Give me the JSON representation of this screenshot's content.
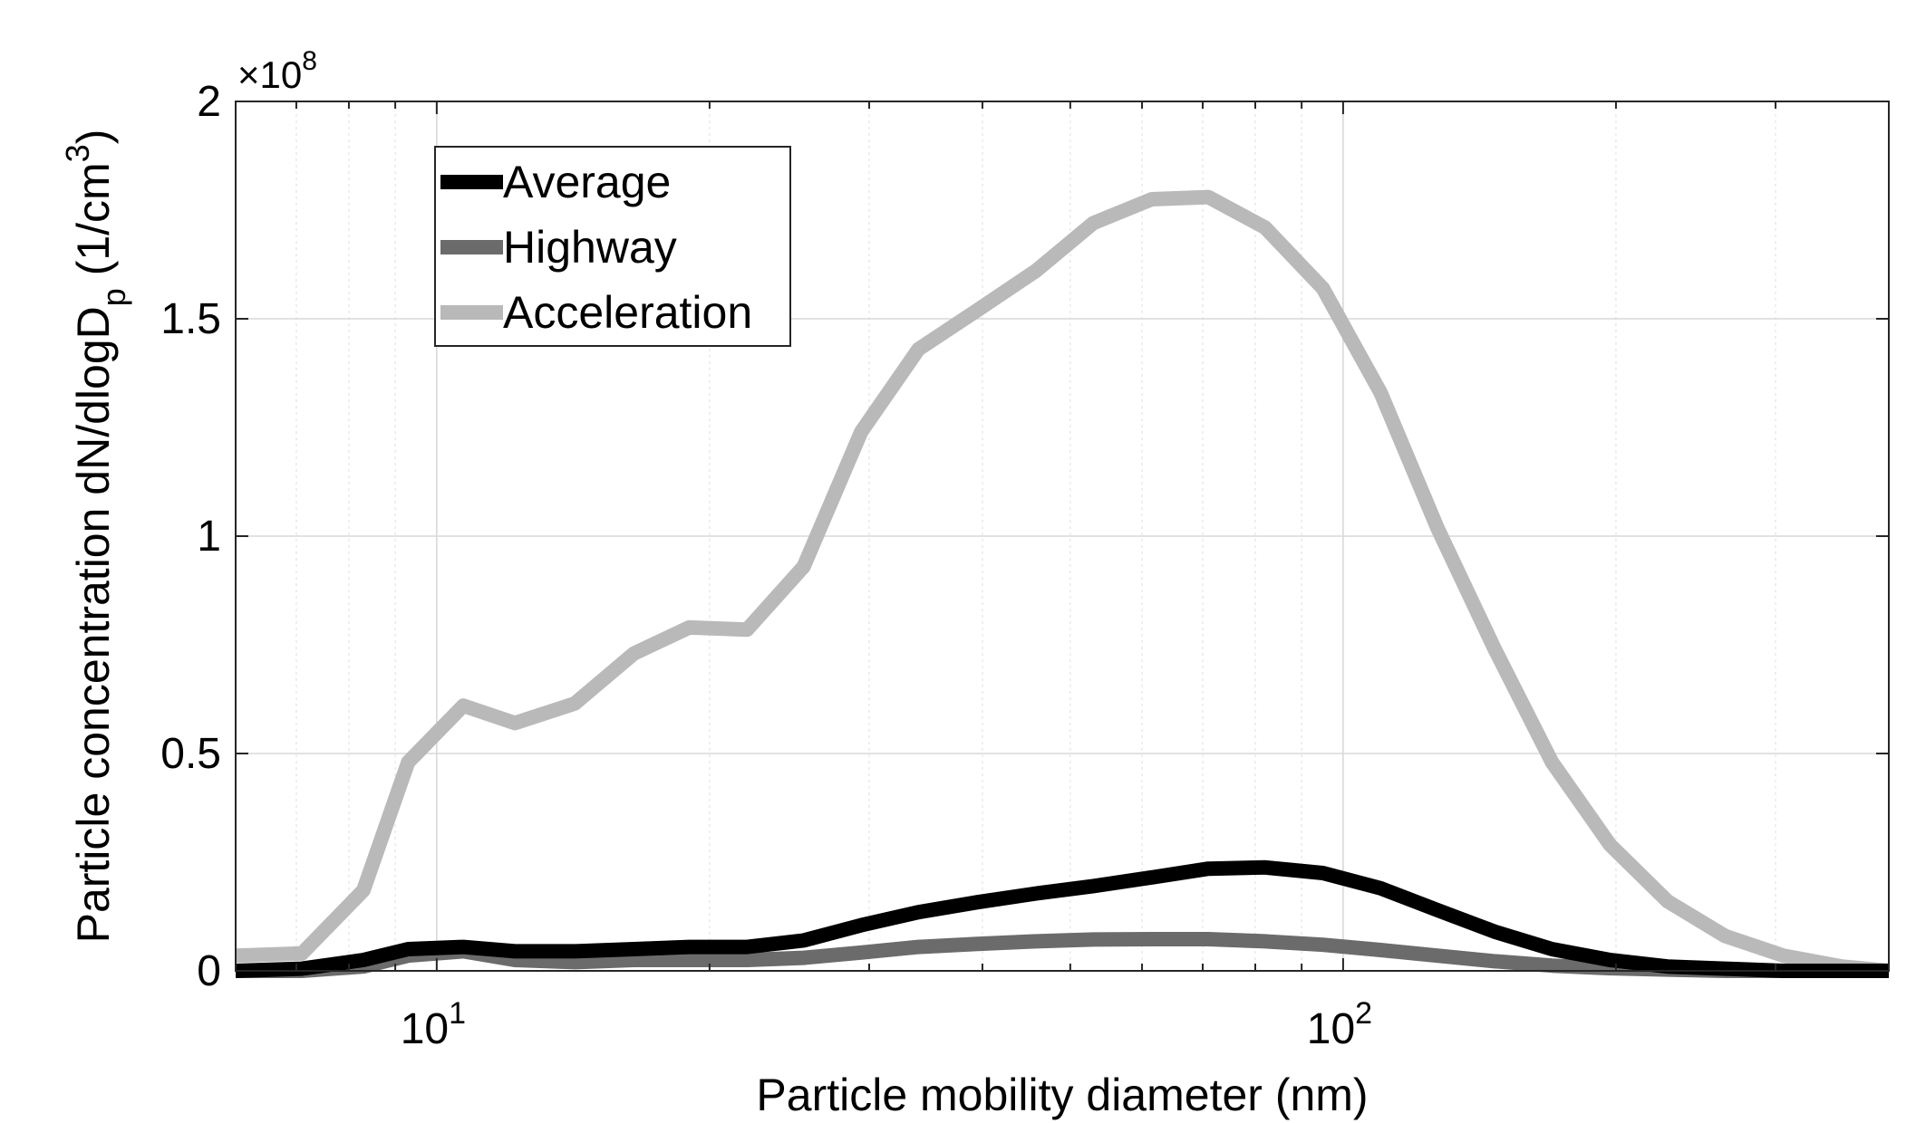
{
  "chart_data": {
    "type": "line",
    "xlabel": "Particle mobility diameter (nm)",
    "ylabel_main": "Particle concentration dN/dlogD",
    "ylabel_sub": "p",
    "ylabel_unit_open": " (1/cm",
    "ylabel_unit_sup": "3",
    "ylabel_unit_close": ")",
    "y_multiplier": "×10",
    "y_multiplier_exp": "8",
    "xscale": "log",
    "xlim": [
      6.0,
      400.0
    ],
    "ylim": [
      0,
      2
    ],
    "grid": true,
    "legend_position": "top-left",
    "x_ticks": [
      {
        "value": 10,
        "base": "10",
        "exp": "1"
      },
      {
        "value": 100,
        "base": "10",
        "exp": "2"
      }
    ],
    "y_ticks": [
      {
        "value": 0,
        "label": "0"
      },
      {
        "value": 0.5,
        "label": "0.5"
      },
      {
        "value": 1,
        "label": "1"
      },
      {
        "value": 1.5,
        "label": "1.5"
      },
      {
        "value": 2,
        "label": "2"
      }
    ],
    "series": [
      {
        "name": "Average",
        "color": "#000000",
        "points": [
          [
            6.0,
            0.0
          ],
          [
            7.1,
            0.005
          ],
          [
            8.3,
            0.025
          ],
          [
            9.3,
            0.05
          ],
          [
            10.7,
            0.055
          ],
          [
            12.2,
            0.045
          ],
          [
            14.2,
            0.045
          ],
          [
            16.5,
            0.05
          ],
          [
            19.0,
            0.055
          ],
          [
            22.0,
            0.055
          ],
          [
            25.4,
            0.07
          ],
          [
            29.4,
            0.105
          ],
          [
            34.0,
            0.135
          ],
          [
            39.5,
            0.158
          ],
          [
            45.8,
            0.178
          ],
          [
            53.0,
            0.195
          ],
          [
            61.5,
            0.215
          ],
          [
            71.0,
            0.235
          ],
          [
            82.0,
            0.238
          ],
          [
            95.0,
            0.225
          ],
          [
            110.0,
            0.19
          ],
          [
            127.0,
            0.14
          ],
          [
            147.0,
            0.09
          ],
          [
            170.0,
            0.05
          ],
          [
            197.0,
            0.025
          ],
          [
            228.0,
            0.01
          ],
          [
            264.0,
            0.005
          ],
          [
            306.0,
            0.0
          ],
          [
            355.0,
            0.0
          ],
          [
            400.0,
            0.0
          ]
        ]
      },
      {
        "name": "Highway",
        "color": "#6b6b6b",
        "points": [
          [
            6.0,
            0.0
          ],
          [
            7.1,
            0.0
          ],
          [
            8.3,
            0.01
          ],
          [
            9.3,
            0.035
          ],
          [
            10.7,
            0.045
          ],
          [
            12.2,
            0.025
          ],
          [
            14.2,
            0.02
          ],
          [
            16.5,
            0.025
          ],
          [
            19.0,
            0.025
          ],
          [
            22.0,
            0.025
          ],
          [
            25.4,
            0.03
          ],
          [
            29.4,
            0.042
          ],
          [
            34.0,
            0.055
          ],
          [
            39.5,
            0.062
          ],
          [
            45.8,
            0.068
          ],
          [
            53.0,
            0.072
          ],
          [
            61.5,
            0.073
          ],
          [
            71.0,
            0.073
          ],
          [
            82.0,
            0.068
          ],
          [
            95.0,
            0.06
          ],
          [
            110.0,
            0.048
          ],
          [
            127.0,
            0.035
          ],
          [
            147.0,
            0.022
          ],
          [
            170.0,
            0.012
          ],
          [
            197.0,
            0.006
          ],
          [
            228.0,
            0.003
          ],
          [
            264.0,
            0.0
          ],
          [
            306.0,
            0.0
          ],
          [
            355.0,
            0.0
          ],
          [
            400.0,
            0.0
          ]
        ]
      },
      {
        "name": "Acceleration",
        "color": "#b9b9b9",
        "points": [
          [
            6.0,
            0.035
          ],
          [
            7.1,
            0.04
          ],
          [
            8.3,
            0.185
          ],
          [
            9.3,
            0.48
          ],
          [
            10.7,
            0.61
          ],
          [
            12.2,
            0.57
          ],
          [
            14.2,
            0.615
          ],
          [
            16.5,
            0.73
          ],
          [
            19.0,
            0.79
          ],
          [
            22.0,
            0.785
          ],
          [
            25.4,
            0.93
          ],
          [
            29.4,
            1.24
          ],
          [
            34.0,
            1.43
          ],
          [
            39.5,
            1.52
          ],
          [
            45.8,
            1.61
          ],
          [
            53.0,
            1.72
          ],
          [
            61.5,
            1.775
          ],
          [
            71.0,
            1.78
          ],
          [
            82.0,
            1.71
          ],
          [
            95.0,
            1.57
          ],
          [
            110.0,
            1.33
          ],
          [
            127.0,
            1.02
          ],
          [
            147.0,
            0.74
          ],
          [
            170.0,
            0.48
          ],
          [
            197.0,
            0.29
          ],
          [
            228.0,
            0.16
          ],
          [
            264.0,
            0.08
          ],
          [
            306.0,
            0.035
          ],
          [
            355.0,
            0.01
          ],
          [
            400.0,
            0.0
          ]
        ]
      }
    ]
  }
}
